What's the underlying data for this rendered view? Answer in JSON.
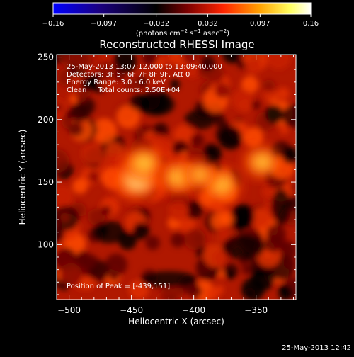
{
  "chart_data": {
    "type": "heatmap",
    "title": "Reconstructed RHESSI Image",
    "xlabel": "Heliocentric X (arcsec)",
    "ylabel": "Heliocentric Y (arcsec)",
    "xlim": [
      -510,
      -318
    ],
    "ylim": [
      56,
      252
    ],
    "xticks": [
      -500,
      -450,
      -400,
      -350
    ],
    "xtick_labels": [
      "−500",
      "−450",
      "−400",
      "−350"
    ],
    "yticks": [
      100,
      150,
      200,
      250
    ],
    "ytick_labels": [
      "100",
      "150",
      "200",
      "250"
    ],
    "colorbar": {
      "ticks": [
        -0.16,
        -0.097,
        -0.032,
        0.032,
        0.097,
        0.16
      ],
      "tick_labels": [
        "−0.16",
        "−0.097",
        "−0.032",
        "0.032",
        "0.097",
        "0.16"
      ],
      "range": [
        -0.16,
        0.16
      ],
      "label_parts": {
        "a": "(photons cm",
        "a_sup": "−2",
        "b": " s",
        "b_sup": "−1",
        "c": " asec",
        "c_sup": "−2",
        "d": ")"
      },
      "colors": [
        "#0000ff",
        "#1a0080",
        "#000000",
        "#7a0000",
        "#ff2400",
        "#ffa000",
        "#ffff60",
        "#ffffff"
      ]
    },
    "sources": [
      {
        "x": -445,
        "y": 152,
        "value": 0.16
      },
      {
        "x": -440,
        "y": 165,
        "value": 0.13
      },
      {
        "x": -412,
        "y": 154,
        "value": 0.12
      },
      {
        "x": -378,
        "y": 148,
        "value": 0.12
      },
      {
        "x": -345,
        "y": 166,
        "value": 0.11
      },
      {
        "x": -395,
        "y": 156,
        "value": 0.09
      }
    ],
    "annotations": [
      "25-May-2013 13:07:12.000 to 13:09:40.000",
      "Detectors: 3F 5F 6F 7F 8F 9F, Att 0",
      "Energy Range: 3.0 - 6.0 keV",
      "Clean     Total counts: 2.50E+04"
    ],
    "peak_label": "Position of Peak = [-439,151]",
    "timestamp": "25-May-2013 12:42"
  }
}
